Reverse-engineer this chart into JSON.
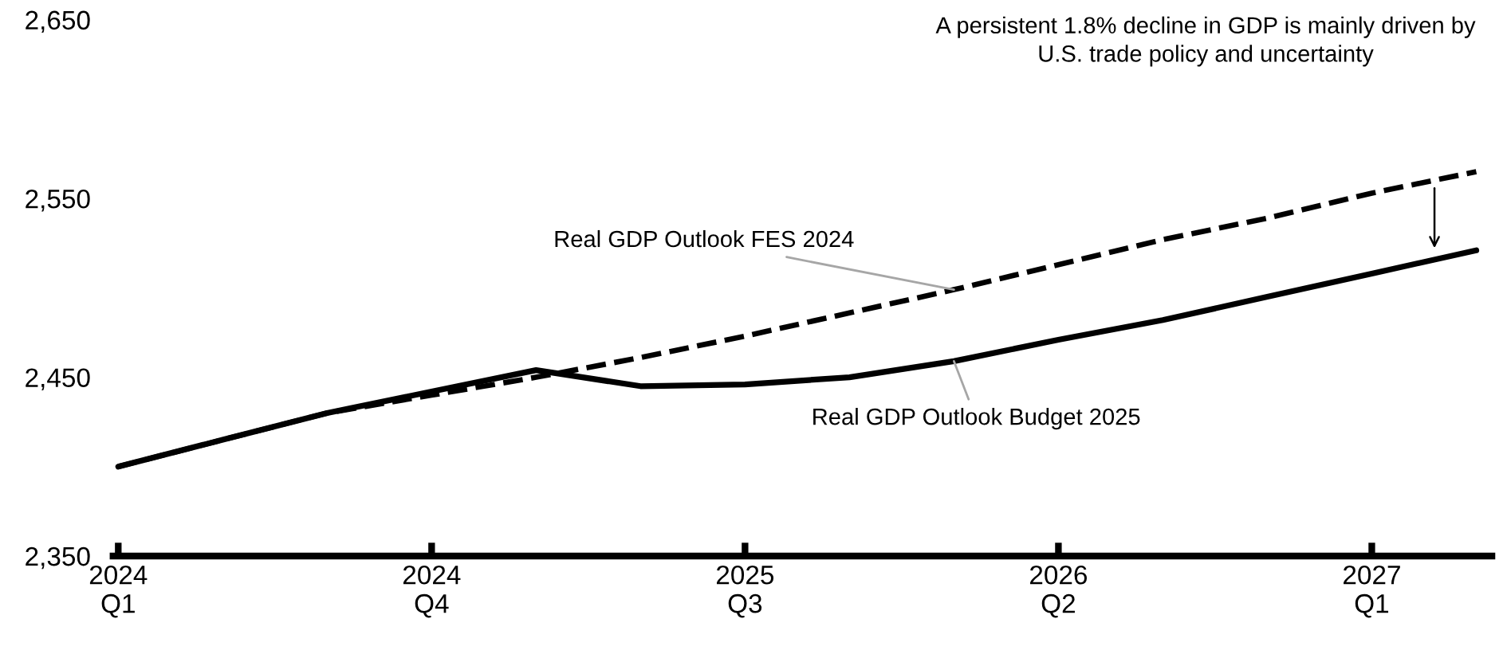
{
  "chart_data": {
    "type": "line",
    "categories": [
      "2024\nQ1",
      null,
      null,
      "2024\nQ4",
      null,
      null,
      "2025\nQ3",
      null,
      null,
      "2026\nQ2",
      null,
      null,
      "2027\nQ1",
      null
    ],
    "series": [
      {
        "name": "Real GDP Outlook FES 2024",
        "color": "#000000",
        "line_style": "dashed",
        "values": [
          2400,
          2415,
          2430,
          2440,
          2450,
          2461,
          2473,
          2486,
          2499,
          2513,
          2527,
          2539,
          2553,
          2565
        ]
      },
      {
        "name": "Real GDP Outlook Budget 2025",
        "color": "#000000",
        "line_style": "solid",
        "values": [
          2400,
          2415,
          2430,
          2442,
          2454,
          2445,
          2446,
          2450,
          2459,
          2471,
          2482,
          2495,
          2508,
          2521
        ]
      }
    ],
    "ylim": [
      2350,
      2650
    ],
    "yticks": [
      {
        "value": 2350,
        "label": "2,350"
      },
      {
        "value": 2450,
        "label": "2,450"
      },
      {
        "value": 2550,
        "label": "2,550"
      },
      {
        "value": 2650,
        "label": "2,650"
      }
    ],
    "annotations": [
      "A persistent 1.8% decline in GDP is mainly driven by\nU.S. trade policy and uncertainty"
    ],
    "grid": false,
    "legend": false,
    "marker": "none"
  }
}
